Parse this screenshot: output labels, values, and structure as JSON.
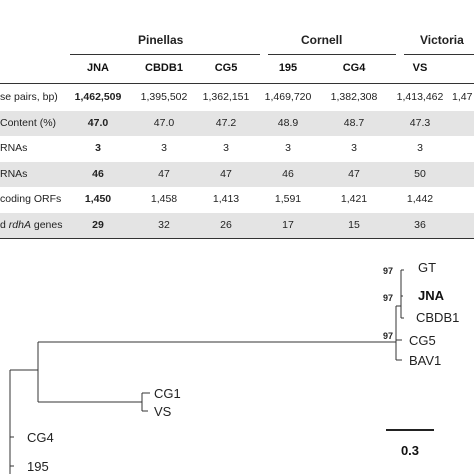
{
  "table": {
    "groups": [
      {
        "label": "Pinellas"
      },
      {
        "label": "Cornell"
      },
      {
        "label": "Victoria"
      }
    ],
    "columns": [
      "JNA",
      "CBDB1",
      "CG5",
      "195",
      "CG4",
      "VS"
    ],
    "rows": [
      {
        "label": "se pairs, bp)",
        "values": [
          "1,462,509",
          "1,395,502",
          "1,362,151",
          "1,469,720",
          "1,382,308",
          "1,413,462"
        ],
        "trail": "1,47"
      },
      {
        "label": "Content (%)",
        "values": [
          "47.0",
          "47.0",
          "47.2",
          "48.9",
          "48.7",
          "47.3"
        ],
        "trail": ""
      },
      {
        "label": "RNAs",
        "values": [
          "3",
          "3",
          "3",
          "3",
          "3",
          "3"
        ],
        "trail": ""
      },
      {
        "label": "RNAs",
        "values": [
          "46",
          "47",
          "47",
          "46",
          "47",
          "50"
        ],
        "trail": ""
      },
      {
        "label": " coding ORFs",
        "values": [
          "1,450",
          "1,458",
          "1,413",
          "1,591",
          "1,421",
          "1,442"
        ],
        "trail": ""
      },
      {
        "label": "d rdhA genes",
        "label_prefix": "d ",
        "label_italic": "rdhA",
        "label_suffix": " genes",
        "values": [
          "29",
          "32",
          "26",
          "17",
          "15",
          "36"
        ],
        "trail": ""
      }
    ]
  },
  "tree": {
    "taxa": [
      "GT",
      "JNA",
      "CBDB1",
      "CG5",
      "BAV1",
      "CG1",
      "VS",
      "CG4",
      "195"
    ],
    "bold_taxon": "JNA",
    "bootstrap_values": [
      "97",
      "97",
      "97"
    ],
    "scale_label": "0.3"
  }
}
